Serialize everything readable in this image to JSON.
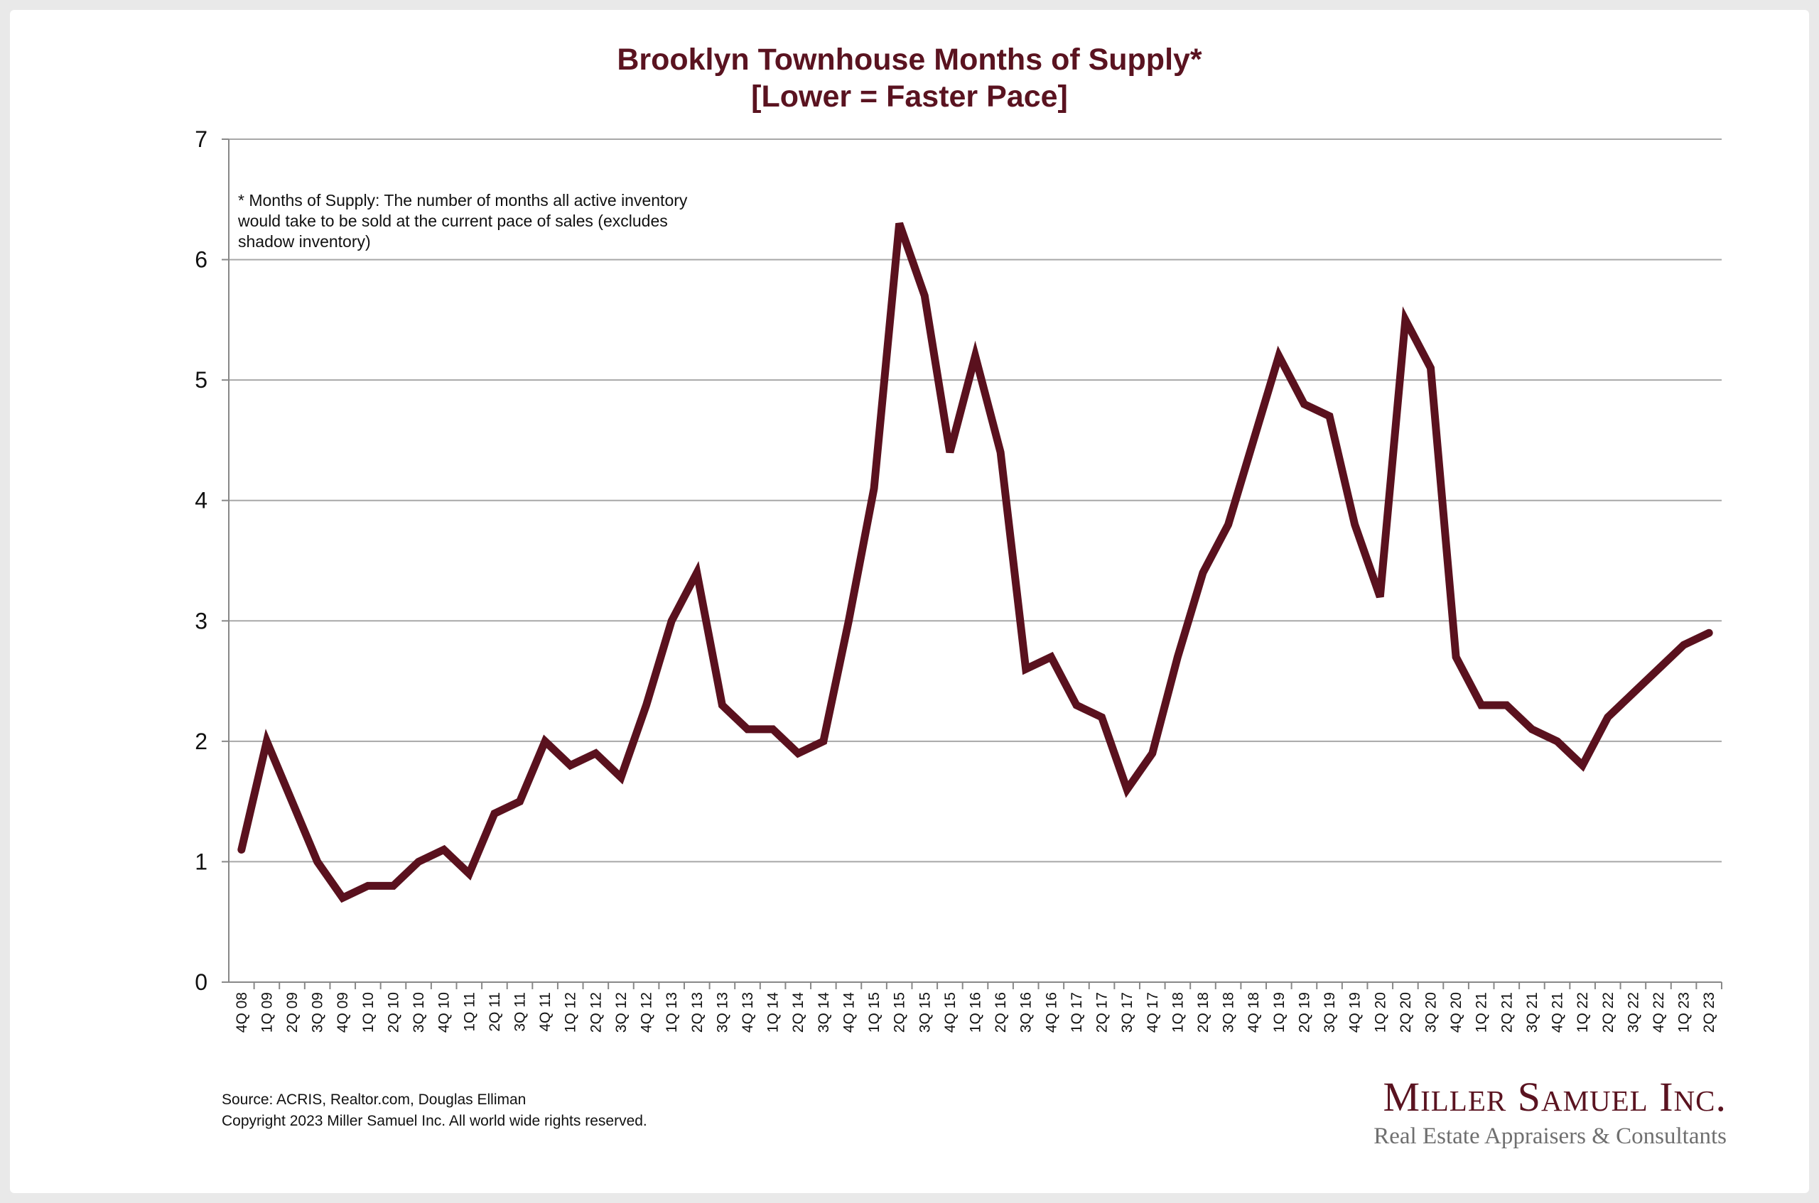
{
  "chart_data": {
    "type": "line",
    "title": "Brooklyn Townhouse Months of Supply*",
    "subtitle": "[Lower = Faster Pace]",
    "xlabel": "",
    "ylabel": "",
    "ylim": [
      0,
      7
    ],
    "yticks": [
      "0",
      "1",
      "2",
      "3",
      "4",
      "5",
      "6",
      "7"
    ],
    "grid": true,
    "annotation": "* Months of Supply: The number of months all active inventory would take to be sold at the current pace of sales (excludes shadow inventory)",
    "categories": [
      "4Q 08",
      "1Q 09",
      "2Q 09",
      "3Q 09",
      "4Q 09",
      "1Q 10",
      "2Q 10",
      "3Q 10",
      "4Q 10",
      "1Q 11",
      "2Q 11",
      "3Q 11",
      "4Q 11",
      "1Q 12",
      "2Q 12",
      "3Q 12",
      "4Q 12",
      "1Q 13",
      "2Q 13",
      "3Q 13",
      "4Q 13",
      "1Q 14",
      "2Q 14",
      "3Q 14",
      "4Q 14",
      "1Q 15",
      "2Q 15",
      "3Q 15",
      "4Q 15",
      "1Q 16",
      "2Q 16",
      "3Q 16",
      "4Q 16",
      "1Q 17",
      "2Q 17",
      "3Q 17",
      "4Q 17",
      "1Q 18",
      "2Q 18",
      "3Q 18",
      "4Q 18",
      "1Q 19",
      "2Q 19",
      "3Q 19",
      "4Q 19",
      "1Q 20",
      "2Q 20",
      "3Q 20",
      "4Q 20",
      "1Q 21",
      "2Q 21",
      "3Q 21",
      "4Q 21",
      "1Q 22",
      "2Q 22",
      "3Q 22",
      "4Q 22",
      "1Q 23",
      "2Q 23"
    ],
    "series": [
      {
        "name": "Months of Supply",
        "color": "#5a111e",
        "values": [
          1.1,
          2.0,
          1.5,
          1.0,
          0.7,
          0.8,
          0.8,
          1.0,
          1.1,
          0.9,
          1.4,
          1.5,
          2.0,
          1.8,
          1.9,
          1.7,
          2.3,
          3.0,
          3.4,
          2.3,
          2.1,
          2.1,
          1.9,
          2.0,
          3.0,
          4.1,
          6.3,
          5.7,
          4.4,
          5.2,
          4.4,
          2.6,
          2.7,
          2.3,
          2.2,
          1.6,
          1.9,
          2.7,
          3.4,
          3.8,
          4.5,
          5.2,
          4.8,
          4.7,
          3.8,
          3.2,
          5.5,
          5.1,
          2.7,
          2.3,
          2.3,
          2.1,
          2.0,
          1.8,
          2.2,
          2.4,
          2.6,
          2.8,
          2.9
        ]
      }
    ]
  },
  "footer": {
    "source": "Source: ACRIS, Realtor.com, Douglas Elliman",
    "copyright": "Copyright 2023 Miller Samuel Inc.  All world wide rights reserved."
  },
  "logo": {
    "name": "Miller Samuel Inc.",
    "tagline": "Real Estate Appraisers & Consultants"
  }
}
